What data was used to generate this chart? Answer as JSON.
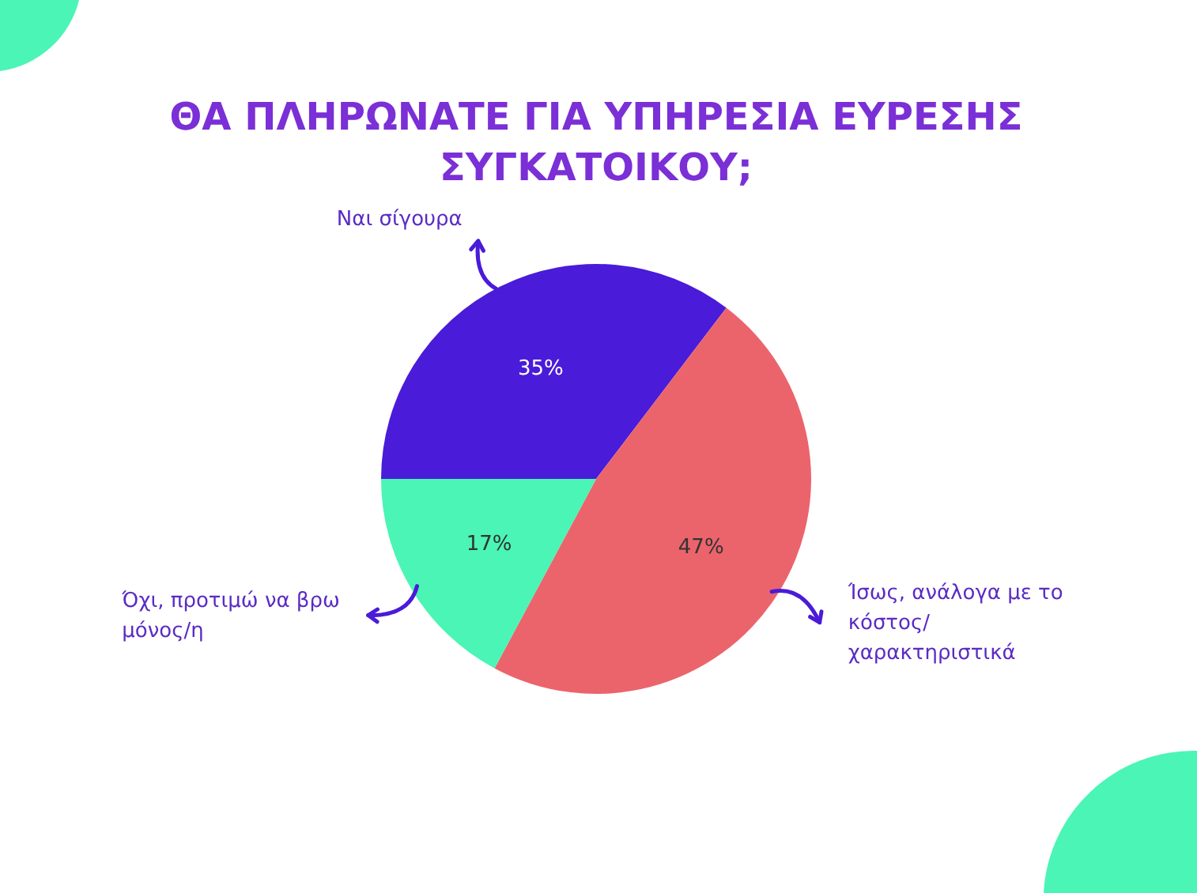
{
  "chart_data": {
    "type": "pie",
    "title": "ΘΑ ΠΛΗΡΩΝΑΤΕ ΓΙΑ ΥΠΗΡΕΣΙΑ ΕΥΡΕΣΗΣ ΣΥΓΚΑΤΟΙΚΟΥ;",
    "categories": [
      "Ναι σίγουρα",
      "Ίσως, ανάλογα με το κόστος/ χαρακτηριστικά",
      "Όχι, προτιμώ να βρω μόνος/η"
    ],
    "values": [
      35,
      47,
      17
    ],
    "colors": [
      "#4a1bd8",
      "#eb646c",
      "#4af5b5"
    ],
    "value_labels": [
      "35%",
      "47%",
      "17%"
    ]
  }
}
